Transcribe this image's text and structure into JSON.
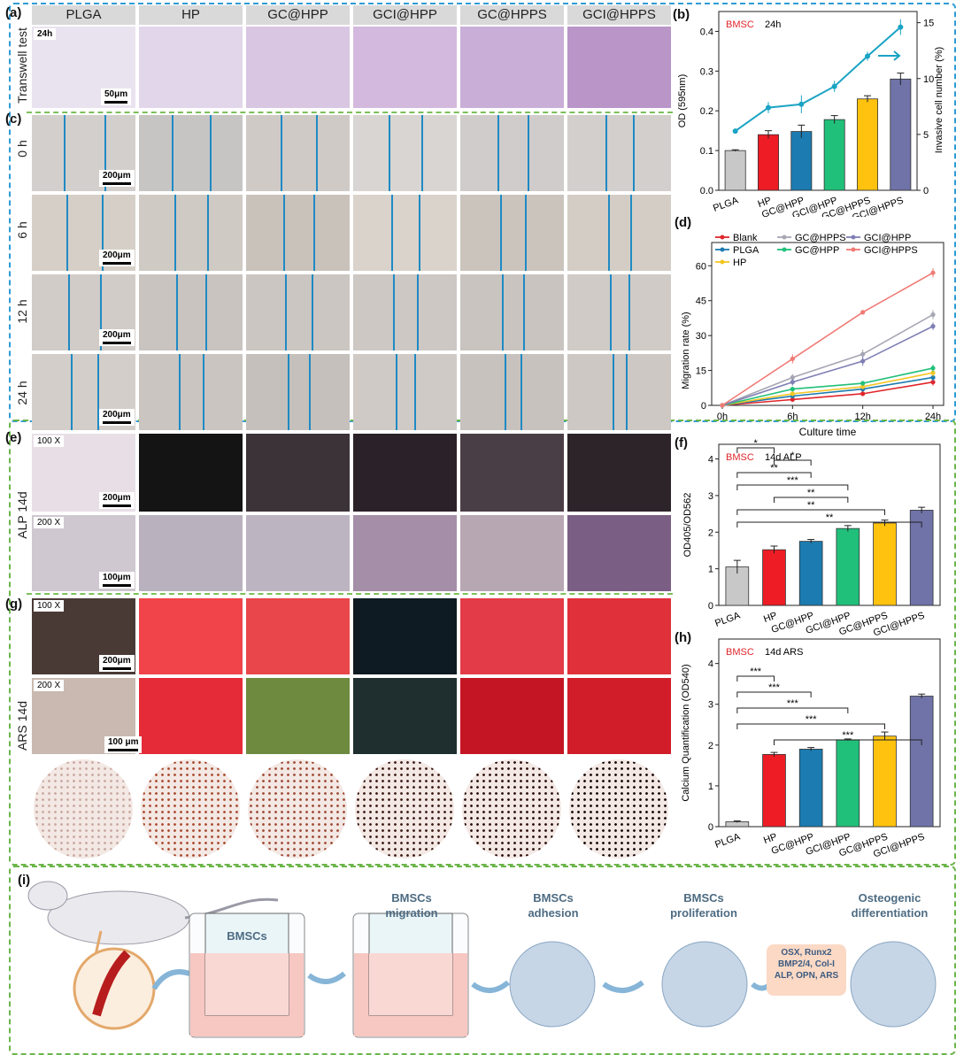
{
  "panels": {
    "a": "(a)",
    "b": "(b)",
    "c": "(c)",
    "d": "(d)",
    "e": "(e)",
    "f": "(f)",
    "g": "(g)",
    "h": "(h)",
    "i": "(i)"
  },
  "groups": [
    "PLGA",
    "HP",
    "GC@HPP",
    "GCI@HPP",
    "GC@HPPS",
    "GCI@HPPS"
  ],
  "transwell": {
    "row_label": "Transwell test",
    "time_tag": "24h",
    "scale": "50μm"
  },
  "scratch": {
    "times": [
      "0 h",
      "6 h",
      "12 h",
      "24 h"
    ],
    "scale": "200μm"
  },
  "alp": {
    "row_label": "ALP 14d",
    "mag1": "100 X",
    "mag2": "200 X",
    "scale1": "200μm",
    "scale2": "100μm"
  },
  "ars": {
    "row_label": "ARS 14d",
    "mag1": "100 X",
    "mag2": "200 X",
    "scale1": "200μm",
    "scale2": "100 μm"
  },
  "colors": {
    "PLGA": "#c8c8c8",
    "HP": "#ee1c25",
    "GC@HPP": "#1c7bb0",
    "GCI@HPP": "#21c07a",
    "GC@HPPS": "#ffc20e",
    "GCI@HPPS": "#6f73a8",
    "frame_blue": "#2e9bd6",
    "frame_green": "#6cb54a"
  },
  "chart_data": [
    {
      "id": "b",
      "type": "bar",
      "annotation_cell": "BMSC",
      "annotation_time": "24h",
      "categories": [
        "PLGA",
        "HP",
        "GC@HPP",
        "GCI@HPP",
        "GC@HPPS",
        "GCI@HPPS"
      ],
      "values": [
        0.1,
        0.14,
        0.148,
        0.178,
        0.23,
        0.28
      ],
      "errors": [
        0.002,
        0.01,
        0.016,
        0.01,
        0.008,
        0.015
      ],
      "ylabel": "OD (595nm)",
      "ylim": [
        0,
        0.45
      ],
      "yticks": [
        "0.0",
        "0.1",
        "0.2",
        "0.3",
        "0.4"
      ],
      "ylabel2": "Invasive cell number (%)",
      "y2lim": [
        0,
        16
      ],
      "y2ticks": [
        "0",
        "5",
        "10",
        "15"
      ],
      "line2": {
        "values": [
          5.3,
          7.4,
          7.7,
          9.3,
          12.0,
          14.6
        ],
        "errors": [
          0.1,
          0.5,
          0.8,
          0.5,
          0.4,
          0.7
        ],
        "color": "#1aa3c4"
      }
    },
    {
      "id": "d",
      "type": "line",
      "x": [
        "0h",
        "6h",
        "12h",
        "24h"
      ],
      "xlabel": "Culture time",
      "ylabel": "Migration rate (%)",
      "ylim": [
        0,
        70
      ],
      "yticks": [
        "0",
        "15",
        "30",
        "45",
        "60"
      ],
      "series": [
        {
          "name": "Blank",
          "color": "#e0262b",
          "values": [
            0,
            2.5,
            5,
            10
          ],
          "errors": [
            0,
            0.5,
            1,
            1.5
          ]
        },
        {
          "name": "PLGA",
          "color": "#1c7bb0",
          "values": [
            0,
            4,
            7,
            12
          ],
          "errors": [
            0,
            0.6,
            1,
            1.5
          ]
        },
        {
          "name": "HP",
          "color": "#f3c623",
          "values": [
            0,
            5,
            8,
            14
          ],
          "errors": [
            0,
            0.8,
            1,
            1.6
          ]
        },
        {
          "name": "GC@HPPS",
          "color": "#a6a6b4",
          "values": [
            0,
            12,
            22,
            39
          ],
          "errors": [
            0,
            1.5,
            2,
            2
          ]
        },
        {
          "name": "GC@HPP",
          "color": "#21c07a",
          "values": [
            0,
            7,
            9.5,
            16
          ],
          "errors": [
            0,
            1,
            1,
            1.5
          ]
        },
        {
          "name": "GCI@HPP",
          "color": "#7f7fb5",
          "values": [
            0,
            10,
            19,
            34
          ],
          "errors": [
            0,
            1.5,
            2,
            1.6
          ]
        },
        {
          "name": "GCI@HPPS",
          "color": "#f07b76",
          "values": [
            0,
            20,
            40,
            57
          ],
          "errors": [
            0,
            2,
            1,
            2
          ]
        }
      ]
    },
    {
      "id": "f",
      "type": "bar",
      "annotation_cell": "BMSC",
      "annotation_time": "14d ALP",
      "categories": [
        "PLGA",
        "HP",
        "GC@HPP",
        "GCI@HPP",
        "GC@HPPS",
        "GCI@HPPS"
      ],
      "values": [
        1.05,
        1.52,
        1.75,
        2.1,
        2.25,
        2.6
      ],
      "errors": [
        0.18,
        0.1,
        0.05,
        0.08,
        0.08,
        0.08
      ],
      "ylabel": "OD405/OD562",
      "ylim": [
        0,
        4.4
      ],
      "yticks": [
        "0",
        "1",
        "2",
        "3",
        "4"
      ],
      "significance": [
        {
          "from": 0,
          "to": 1,
          "label": "*"
        },
        {
          "from": 1,
          "to": 2,
          "label": "*"
        },
        {
          "from": 0,
          "to": 2,
          "label": "**"
        },
        {
          "from": 0,
          "to": 3,
          "label": "***"
        },
        {
          "from": 1,
          "to": 3,
          "label": "**"
        },
        {
          "from": 0,
          "to": 4,
          "label": "**"
        },
        {
          "from": 0,
          "to": 5,
          "label": "**"
        }
      ]
    },
    {
      "id": "h",
      "type": "bar",
      "annotation_cell": "BMSC",
      "annotation_time": "14d ARS",
      "categories": [
        "PLGA",
        "HP",
        "GC@HPP",
        "GCI@HPP",
        "GC@HPPS",
        "GCI@HPPS"
      ],
      "values": [
        0.12,
        1.77,
        1.9,
        2.13,
        2.22,
        3.2
      ],
      "errors": [
        0.02,
        0.05,
        0.04,
        0.02,
        0.1,
        0.05
      ],
      "ylabel": "Calcium Quantification (OD540)",
      "ylim": [
        0,
        4.6
      ],
      "yticks": [
        "0",
        "1",
        "2",
        "3",
        "4"
      ],
      "significance": [
        {
          "from": 0,
          "to": 1,
          "label": "***"
        },
        {
          "from": 0,
          "to": 2,
          "label": "***"
        },
        {
          "from": 0,
          "to": 3,
          "label": "***"
        },
        {
          "from": 0,
          "to": 4,
          "label": "***"
        },
        {
          "from": 1,
          "to": 5,
          "label": "***"
        }
      ]
    }
  ],
  "schematic": {
    "well_label": "BMSCs",
    "steps": [
      "BMSCs\nmigration",
      "BMSCs\nadhesion",
      "BMSCs\nproliferation",
      "Osteogenic\ndifferentiation"
    ],
    "markers": "OSX, Runx2\nBMP2/4, Col-I\nALP, OPN, ARS"
  }
}
